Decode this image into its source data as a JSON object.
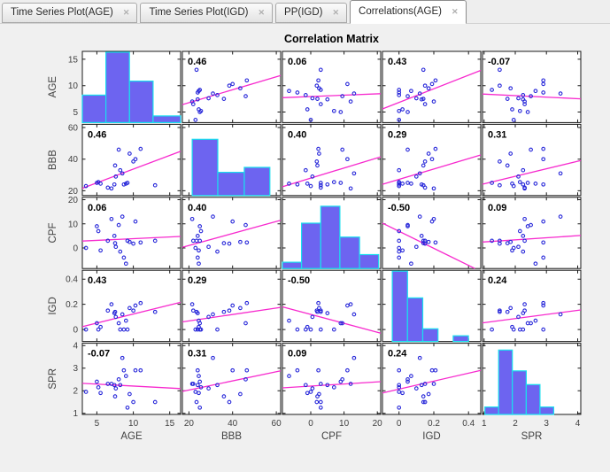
{
  "tabs": [
    {
      "label": "Time Series Plot(AGE)",
      "active": false
    },
    {
      "label": "Time Series Plot(IGD)",
      "active": false
    },
    {
      "label": "PP(IGD)",
      "active": false
    },
    {
      "label": "Correlations(AGE)",
      "active": true
    }
  ],
  "colors": {
    "background": "#f0f0f0",
    "cell_bg": "#ffffff",
    "axis": "#1a1a1a",
    "hist_fill": "#6d64f0",
    "hist_edge": "#19dfee",
    "marker": "#2626d9",
    "trend": "#f72ace",
    "label_text": "#404040",
    "corr_text": "#000000"
  },
  "chart_data": {
    "type": "scatter-matrix",
    "title": "Correlation Matrix",
    "variables": [
      "AGE",
      "BBB",
      "CPF",
      "IGD",
      "SPR"
    ],
    "axes": {
      "AGE": {
        "lim": [
          3,
          16.5
        ],
        "ticks": [
          5,
          10,
          15
        ],
        "tick_labels": [
          "5",
          "10",
          "15"
        ]
      },
      "BBB": {
        "lim": [
          17,
          62
        ],
        "ticks": [
          20,
          40,
          60
        ],
        "tick_labels": [
          "20",
          "40",
          "60"
        ]
      },
      "CPF": {
        "lim": [
          -8.5,
          21
        ],
        "ticks": [
          0,
          10,
          20
        ],
        "tick_labels": [
          "0",
          "10",
          "20"
        ]
      },
      "IGD": {
        "lim": [
          -0.095,
          0.47
        ],
        "ticks": [
          0,
          0.2,
          0.4
        ],
        "tick_labels": [
          "0",
          "0.2",
          "0.4"
        ]
      },
      "SPR": {
        "lim": [
          0.95,
          4.1
        ],
        "ticks": [
          1,
          2,
          3,
          4
        ],
        "tick_labels": [
          "1",
          "2",
          "3",
          "4"
        ]
      }
    },
    "correlation_matrix": [
      [
        null,
        0.46,
        0.06,
        0.43,
        -0.07
      ],
      [
        0.46,
        null,
        0.4,
        0.29,
        0.31
      ],
      [
        0.06,
        0.4,
        null,
        -0.5,
        0.09
      ],
      [
        0.43,
        0.29,
        -0.5,
        null,
        0.24
      ],
      [
        -0.07,
        0.31,
        0.09,
        0.24,
        null
      ]
    ],
    "correlation_labels": [
      [
        "",
        "0.46",
        "0.06",
        "0.43",
        "-0.07"
      ],
      [
        "0.46",
        "",
        "0.40",
        "0.29",
        "0.31"
      ],
      [
        "0.06",
        "0.40",
        "",
        "-0.50",
        "0.09"
      ],
      [
        "0.43",
        "0.29",
        "-0.50",
        "",
        "0.24"
      ],
      [
        "-0.07",
        "0.31",
        "0.09",
        "0.24",
        ""
      ]
    ],
    "histograms": {
      "AGE": {
        "edges_frac": [
          0.0,
          0.24,
          0.48,
          0.72,
          1.0
        ],
        "heights_frac": [
          0.39,
          1.0,
          0.59,
          0.095
        ]
      },
      "BBB": {
        "edges_frac": [
          0.1,
          0.36,
          0.63,
          0.89
        ],
        "heights_frac": [
          0.8,
          0.33,
          0.4
        ]
      },
      "CPF": {
        "edges_frac": [
          0.0,
          0.195,
          0.39,
          0.585,
          0.785,
          0.98
        ],
        "heights_frac": [
          0.09,
          0.645,
          0.885,
          0.447,
          0.198
        ]
      },
      "IGD": {
        "edges_frac": [
          0.1,
          0.255,
          0.41,
          0.565,
          0.72,
          0.875
        ],
        "heights_frac": [
          1.0,
          0.62,
          0.18,
          0.0,
          0.08
        ]
      },
      "SPR": {
        "edges_frac": [
          0.024,
          0.164,
          0.304,
          0.445,
          0.585,
          0.725
        ],
        "heights_frac": [
          0.106,
          0.915,
          0.62,
          0.425,
          0.106
        ]
      }
    },
    "observations": [
      {
        "AGE": 3.5,
        "BBB": 23.0,
        "CPF": 0.0,
        "IGD": 0.0,
        "SPR": 1.95
      },
      {
        "AGE": 5.0,
        "BBB": 25.0,
        "CPF": 9.0,
        "IGD": 0.05,
        "SPR": 2.4
      },
      {
        "AGE": 5.2,
        "BBB": 25.5,
        "CPF": 7.0,
        "IGD": 0.0,
        "SPR": 2.15
      },
      {
        "AGE": 5.5,
        "BBB": 24.5,
        "CPF": -1.0,
        "IGD": 0.02,
        "SPR": 1.9
      },
      {
        "AGE": 6.5,
        "BBB": 22.0,
        "CPF": 3.0,
        "IGD": 0.15,
        "SPR": 2.3
      },
      {
        "AGE": 7.0,
        "BBB": 21.5,
        "CPF": 12.0,
        "IGD": 0.2,
        "SPR": 2.3
      },
      {
        "AGE": 7.4,
        "BBB": 24.0,
        "CPF": 5.0,
        "IGD": 0.13,
        "SPR": 2.25
      },
      {
        "AGE": 7.5,
        "BBB": 36.0,
        "CPF": 2.0,
        "IGD": 0.14,
        "SPR": 1.75
      },
      {
        "AGE": 7.6,
        "BBB": 29.0,
        "CPF": 0.5,
        "IGD": 0.1,
        "SPR": 2.1
      },
      {
        "AGE": 8.0,
        "BBB": 46.0,
        "CPF": 9.5,
        "IGD": 0.05,
        "SPR": 2.5
      },
      {
        "AGE": 8.2,
        "BBB": 33.0,
        "CPF": -1.5,
        "IGD": 0.0,
        "SPR": 2.25
      },
      {
        "AGE": 8.5,
        "BBB": 31.0,
        "CPF": 13.0,
        "IGD": 0.12,
        "SPR": 3.45
      },
      {
        "AGE": 8.7,
        "BBB": 24.0,
        "CPF": -4.0,
        "IGD": 0.0,
        "SPR": 2.9
      },
      {
        "AGE": 9.0,
        "BBB": 24.5,
        "CPF": -6.5,
        "IGD": 0.07,
        "SPR": 2.65
      },
      {
        "AGE": 9.2,
        "BBB": 25.0,
        "CPF": 3.0,
        "IGD": 0.0,
        "SPR": 1.25
      },
      {
        "AGE": 9.5,
        "BBB": 43.5,
        "CPF": 2.5,
        "IGD": 0.17,
        "SPR": 1.85
      },
      {
        "AGE": 10.0,
        "BBB": 38.5,
        "CPF": 1.8,
        "IGD": 0.15,
        "SPR": 1.5
      },
      {
        "AGE": 10.3,
        "BBB": 40.0,
        "CPF": 11.0,
        "IGD": 0.19,
        "SPR": 2.9
      },
      {
        "AGE": 11.0,
        "BBB": 46.5,
        "CPF": 2.3,
        "IGD": 0.21,
        "SPR": 2.9
      },
      {
        "AGE": 13.0,
        "BBB": 23.5,
        "CPF": 3.0,
        "IGD": 0.14,
        "SPR": 1.5
      }
    ]
  }
}
